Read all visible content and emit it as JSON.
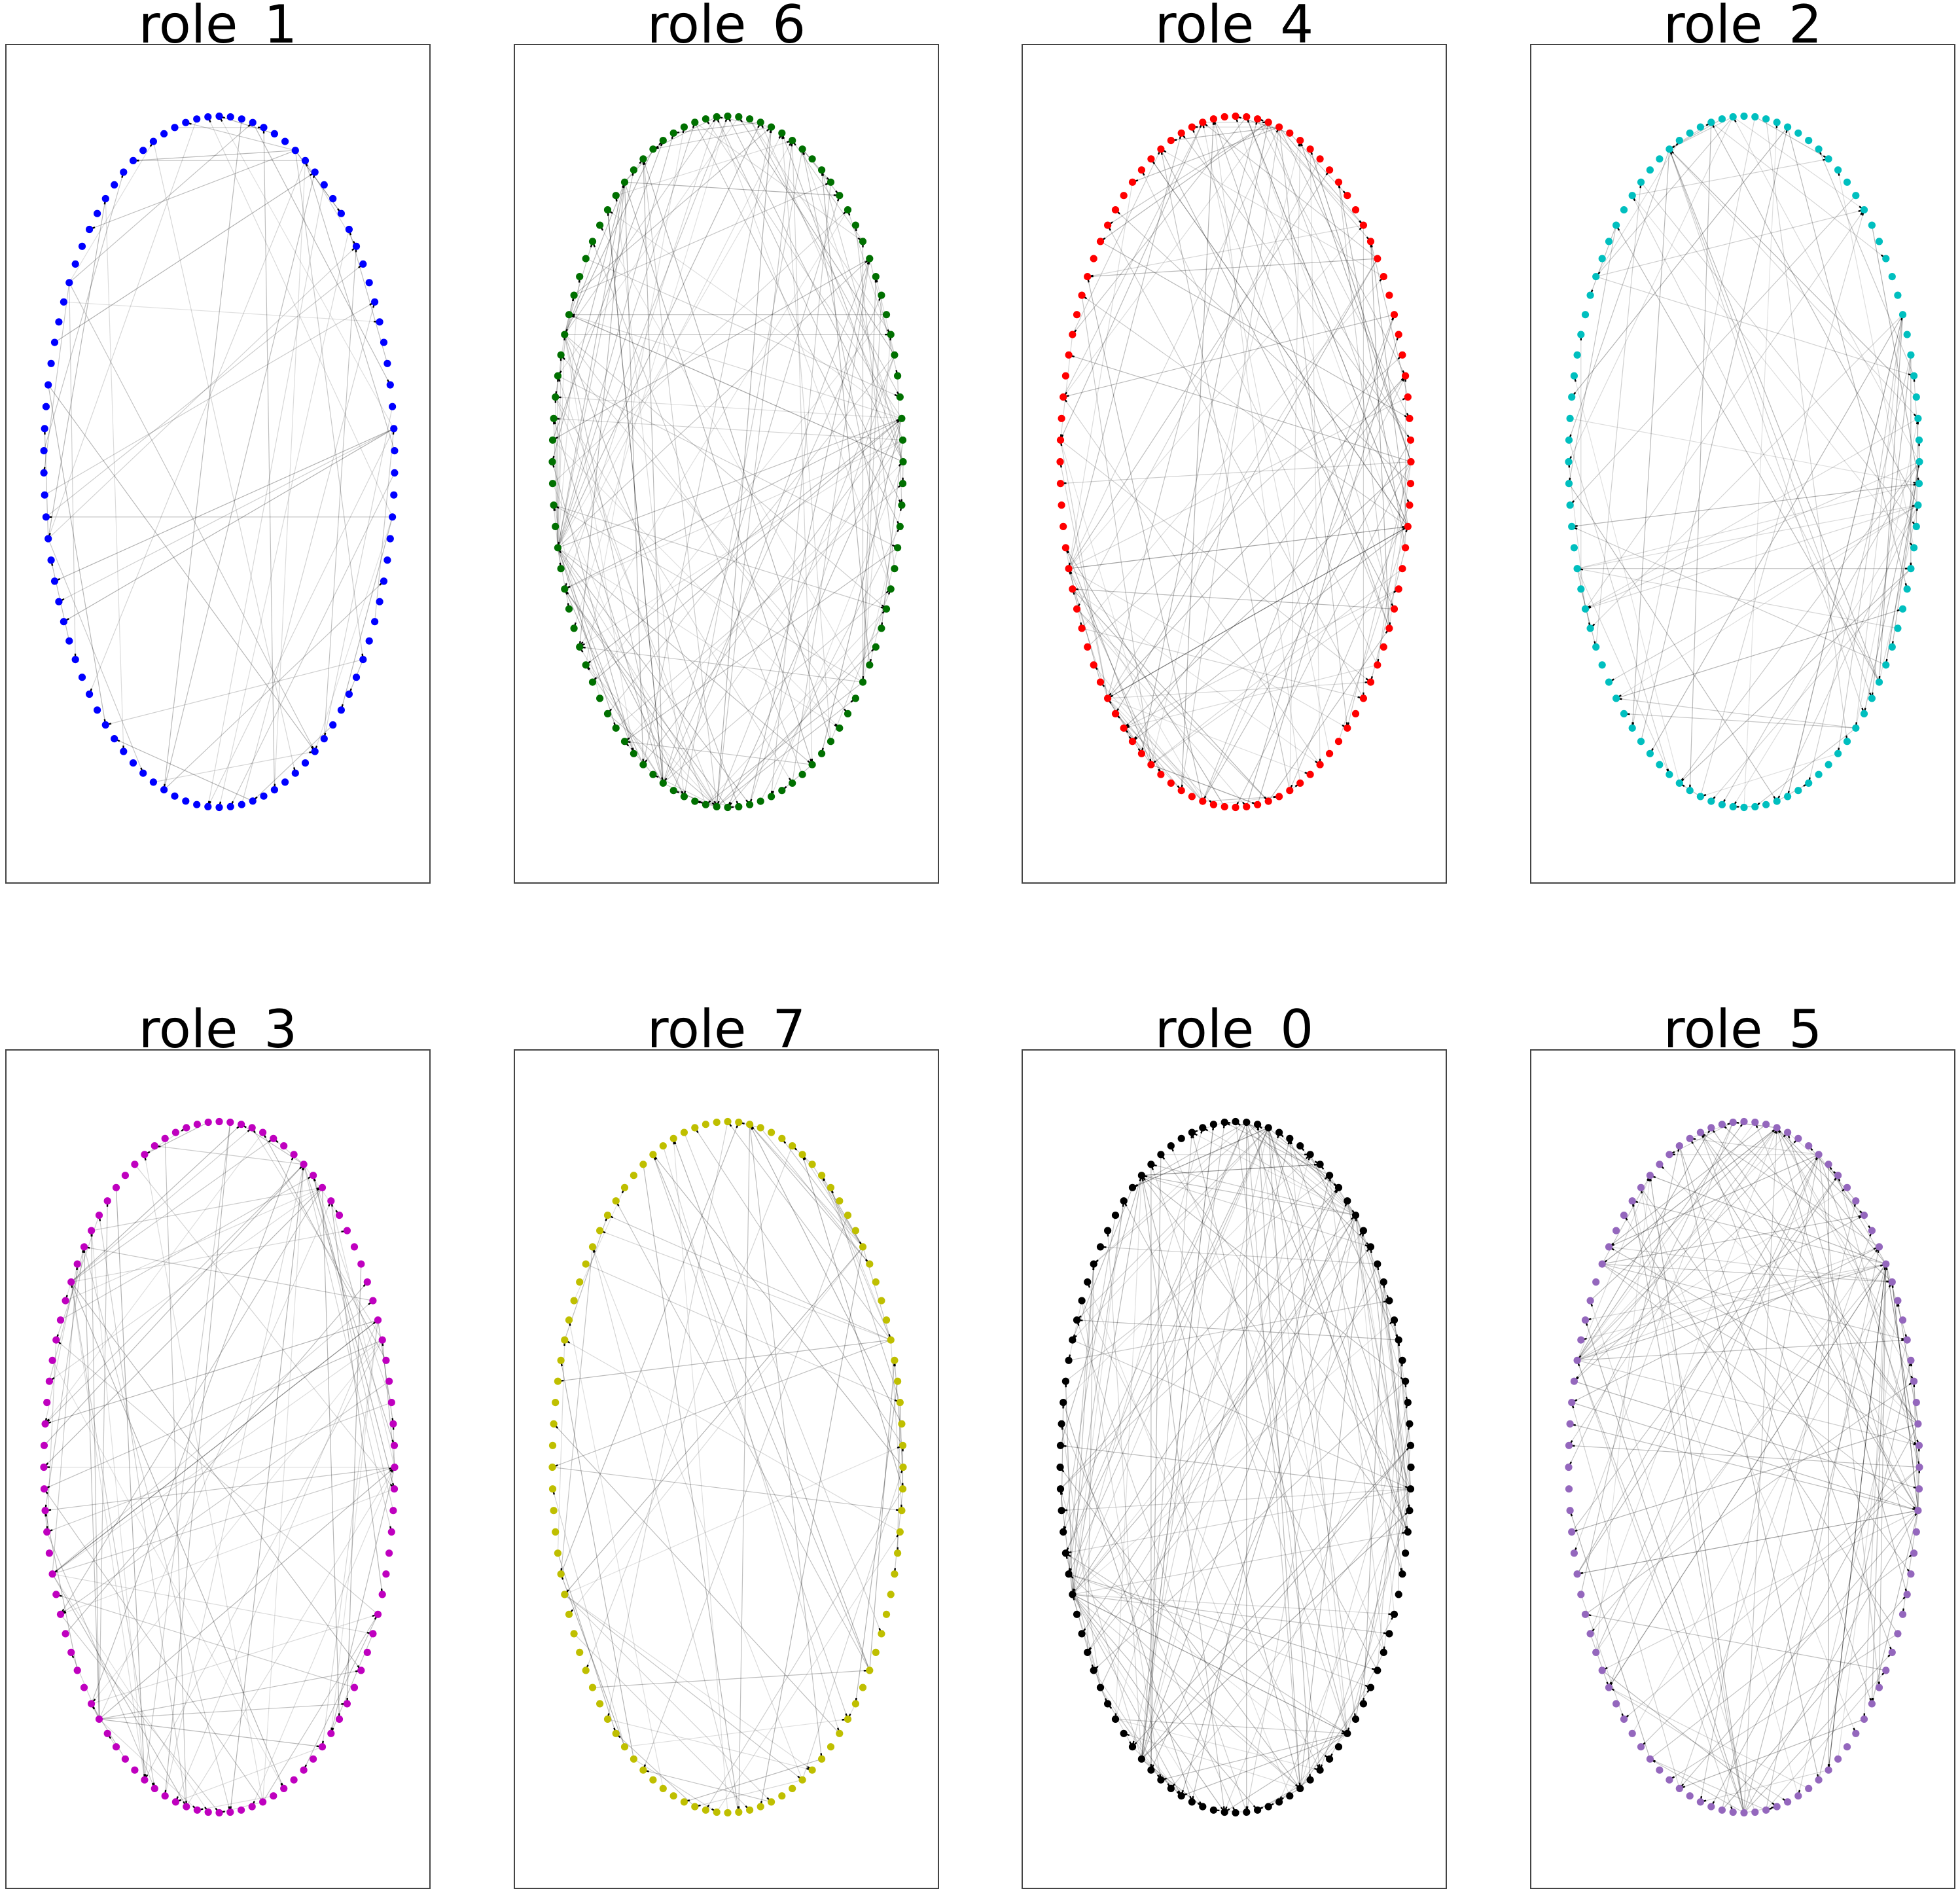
{
  "figure": {
    "panels": [
      {
        "title": "role_1",
        "color": "#0000ff",
        "nodes": 98,
        "edges": 60,
        "seed": 11
      },
      {
        "title": "role_6",
        "color": "#007000",
        "nodes": 100,
        "edges": 175,
        "seed": 23
      },
      {
        "title": "role_4",
        "color": "#ff0000",
        "nodes": 100,
        "edges": 140,
        "seed": 37
      },
      {
        "title": "role_2",
        "color": "#00bfbf",
        "nodes": 100,
        "edges": 95,
        "seed": 41
      },
      {
        "title": "role_3",
        "color": "#bf00bf",
        "nodes": 100,
        "edges": 110,
        "seed": 53
      },
      {
        "title": "role_7",
        "color": "#bfbf00",
        "nodes": 100,
        "edges": 80,
        "seed": 67
      },
      {
        "title": "role_0",
        "color": "#000000",
        "nodes": 100,
        "edges": 190,
        "seed": 79
      },
      {
        "title": "role_5",
        "color": "#9467bd",
        "nodes": 100,
        "edges": 150,
        "seed": 97
      }
    ]
  }
}
